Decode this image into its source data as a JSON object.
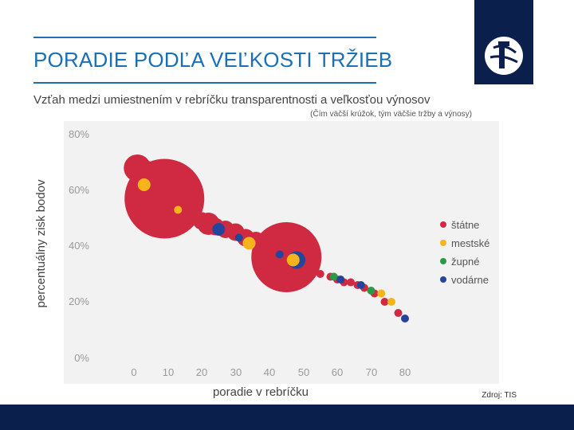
{
  "slide": {
    "title": "PORADIE PODĽA VEĽKOSTI TRŽIEB",
    "source": "Zdroj: TIS"
  },
  "colors": {
    "title": "#1a6fb5",
    "navy": "#0b1f4d",
    "statne": "#cf2a41",
    "mestske": "#f5b51a",
    "zupne": "#2a9a48",
    "vodarne": "#24459c"
  },
  "chart_data": {
    "type": "scatter",
    "title": "Vzťah medzi umiestnením v rebríčku transparentnosti a veľkosťou výnosov",
    "subtitle": "(Čím väčší krúžok, tým väčšie tržby a výnosy)",
    "xlabel": "poradie v rebríčku",
    "ylabel": "percentuálny zisk bodov",
    "xlim": [
      -5,
      83
    ],
    "ylim": [
      0,
      80
    ],
    "xticks": [
      "0",
      "10",
      "20",
      "30",
      "40",
      "50",
      "60",
      "70",
      "80"
    ],
    "yticks": [
      "0%",
      "20%",
      "40%",
      "60%",
      "80%"
    ],
    "legend_position": "right",
    "series": [
      {
        "name": "štátne",
        "color_key": "statne",
        "points": [
          {
            "x": 1,
            "y": 68,
            "size": 5
          },
          {
            "x": 3,
            "y": 66,
            "size": 5
          },
          {
            "x": 9,
            "y": 57,
            "size": 16
          },
          {
            "x": 15,
            "y": 55,
            "size": 3
          },
          {
            "x": 20,
            "y": 49,
            "size": 3
          },
          {
            "x": 22,
            "y": 48,
            "size": 4
          },
          {
            "x": 24,
            "y": 47,
            "size": 3
          },
          {
            "x": 27,
            "y": 46,
            "size": 3
          },
          {
            "x": 30,
            "y": 45,
            "size": 3
          },
          {
            "x": 33,
            "y": 43,
            "size": 3
          },
          {
            "x": 36,
            "y": 42,
            "size": 3
          },
          {
            "x": 45,
            "y": 36,
            "size": 14
          },
          {
            "x": 51,
            "y": 32,
            "size": 1
          },
          {
            "x": 53,
            "y": 31,
            "size": 1
          },
          {
            "x": 55,
            "y": 30,
            "size": 1
          },
          {
            "x": 58,
            "y": 29,
            "size": 1
          },
          {
            "x": 60,
            "y": 28,
            "size": 1
          },
          {
            "x": 62,
            "y": 27,
            "size": 1
          },
          {
            "x": 64,
            "y": 27,
            "size": 1
          },
          {
            "x": 66,
            "y": 26,
            "size": 1
          },
          {
            "x": 68,
            "y": 25,
            "size": 1
          },
          {
            "x": 71,
            "y": 23,
            "size": 1
          },
          {
            "x": 74,
            "y": 20,
            "size": 1
          },
          {
            "x": 78,
            "y": 16,
            "size": 1
          }
        ]
      },
      {
        "name": "mestské",
        "color_key": "mestske",
        "points": [
          {
            "x": 3,
            "y": 62,
            "size": 2
          },
          {
            "x": 13,
            "y": 53,
            "size": 1
          },
          {
            "x": 34,
            "y": 41,
            "size": 2
          },
          {
            "x": 47,
            "y": 35,
            "size": 2
          },
          {
            "x": 73,
            "y": 23,
            "size": 1
          },
          {
            "x": 76,
            "y": 20,
            "size": 1
          }
        ]
      },
      {
        "name": "župné",
        "color_key": "zupne",
        "points": [
          {
            "x": 59,
            "y": 29,
            "size": 1
          },
          {
            "x": 70,
            "y": 24,
            "size": 1
          }
        ]
      },
      {
        "name": "vodárne",
        "color_key": "vodarne",
        "points": [
          {
            "x": 25,
            "y": 46,
            "size": 2
          },
          {
            "x": 31,
            "y": 43,
            "size": 1
          },
          {
            "x": 43,
            "y": 37,
            "size": 1
          },
          {
            "x": 48,
            "y": 35,
            "size": 3
          },
          {
            "x": 61,
            "y": 28,
            "size": 1
          },
          {
            "x": 67,
            "y": 26,
            "size": 1
          },
          {
            "x": 80,
            "y": 14,
            "size": 1
          }
        ]
      }
    ]
  }
}
